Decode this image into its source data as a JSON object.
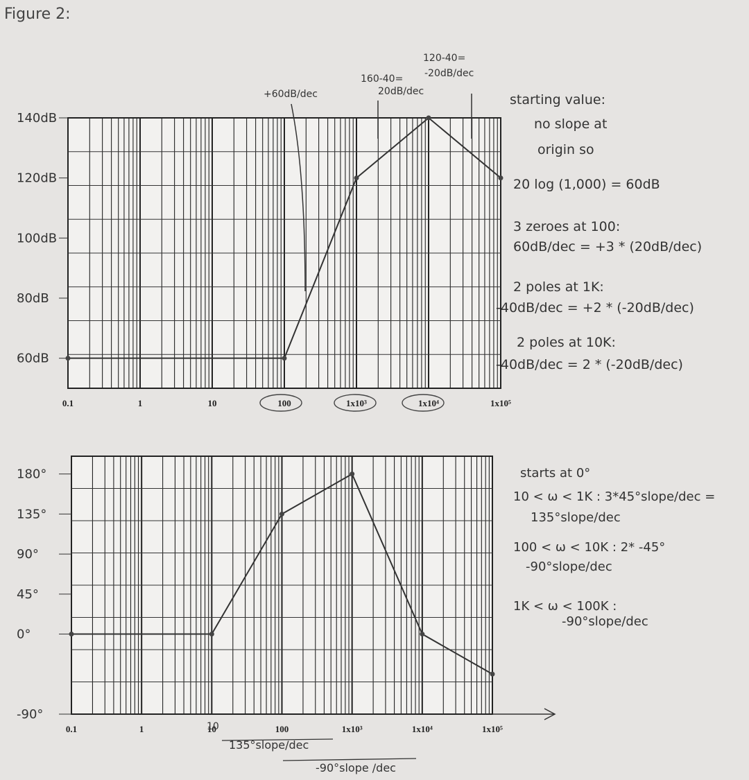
{
  "figure_label": "Figure 2:",
  "chart_data": [
    {
      "type": "line",
      "name": "magnitude",
      "x_scale": "log",
      "xlim": [
        0.1,
        100000
      ],
      "ylim": [
        50,
        140
      ],
      "x_ticks": [
        "0.1",
        "1",
        "10",
        "100",
        "1x10³",
        "1x10⁴",
        "1x10⁵"
      ],
      "y_ticks": [
        {
          "label": "140dB",
          "v": 140
        },
        {
          "label": "120dB",
          "v": 120
        },
        {
          "label": "100dB",
          "v": 100
        },
        {
          "label": "80dB",
          "v": 80
        },
        {
          "label": "60dB",
          "v": 60
        }
      ],
      "series": [
        {
          "x": [
            0.1,
            100,
            1000,
            10000,
            100000
          ],
          "y": [
            60,
            60,
            120,
            140,
            120
          ]
        }
      ],
      "annotations_top": [
        "+60dB/dec",
        "160-40=",
        "20dB/dec",
        "120-40=",
        "-20dB/dec"
      ],
      "notes": [
        "starting value:",
        "no slope at",
        "origin so",
        "20 log (1,000) = 60dB",
        "3 zeroes at 100:",
        "60dB/dec = +3 * (20dB/dec)",
        "2 poles at 1K:",
        "-40dB/dec = +2 * (-20dB/dec)",
        "2 poles at 10K:",
        "-40dB/dec = 2 * (-20dB/dec)"
      ]
    },
    {
      "type": "line",
      "name": "phase",
      "x_scale": "log",
      "xlim": [
        0.1,
        100000
      ],
      "ylim": [
        -90,
        200
      ],
      "x_ticks": [
        "0.1",
        "1",
        "10",
        "100",
        "1x10³",
        "1x10⁴",
        "1x10⁵"
      ],
      "y_ticks": [
        {
          "label": "180°",
          "v": 180
        },
        {
          "label": "135°",
          "v": 135
        },
        {
          "label": "90°",
          "v": 90
        },
        {
          "label": "45°",
          "v": 45
        },
        {
          "label": "0°",
          "v": 0
        },
        {
          "label": "-90°",
          "v": -90
        }
      ],
      "series": [
        {
          "x": [
            0.1,
            10,
            100,
            1000,
            10000,
            100000
          ],
          "y": [
            0,
            0,
            135,
            180,
            0,
            -45
          ]
        }
      ],
      "notes": [
        "starts at 0°",
        "10 < ω < 1K : 3*45°slope/dec =",
        "135°slope/dec",
        "100 < ω < 10K : 2* -45°",
        "-90°slope/dec",
        "1K < ω < 100K :",
        "-90°slope/dec"
      ],
      "bottom_notes": [
        "10",
        "135°slope/dec",
        "-90°slope /dec"
      ]
    }
  ]
}
